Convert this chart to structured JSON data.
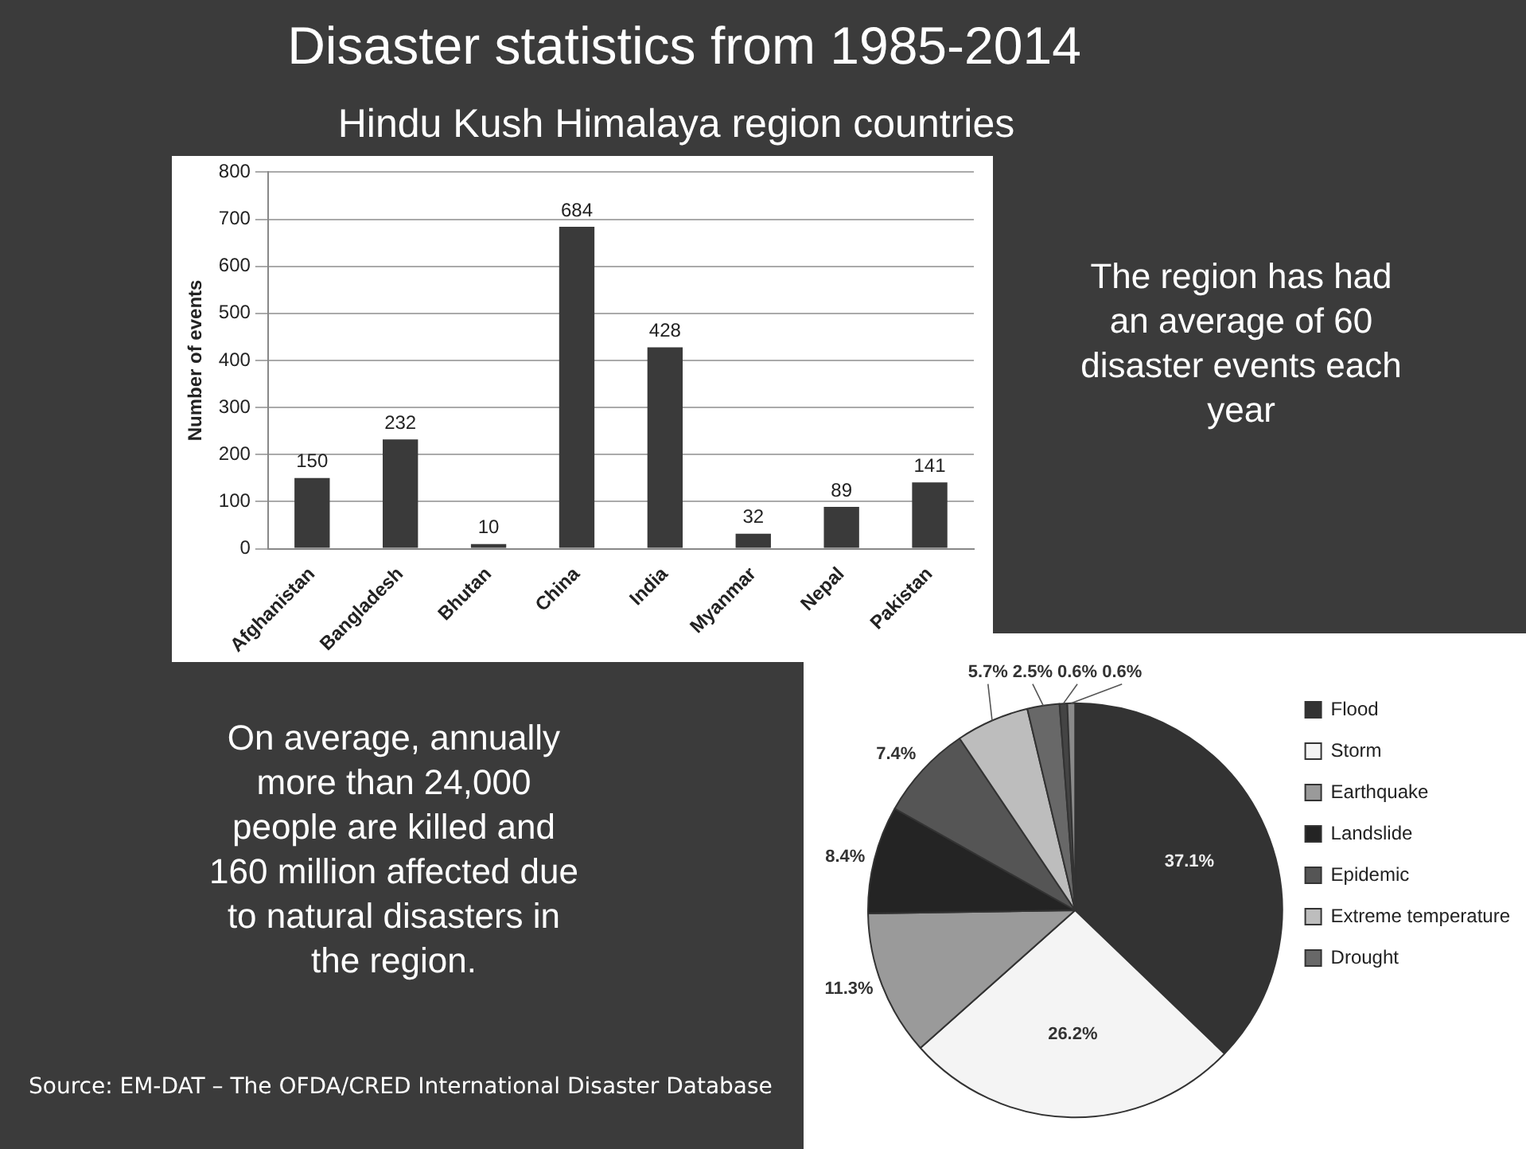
{
  "chart_data": [
    {
      "type": "bar",
      "title": "Disaster statistics from 1985-2014",
      "subtitle": "Hindu Kush Himalaya region countries",
      "categories": [
        "Afghanistan",
        "Bangladesh",
        "Bhutan",
        "China",
        "India",
        "Myanmar",
        "Nepal",
        "Pakistan"
      ],
      "values": [
        150,
        232,
        10,
        684,
        428,
        32,
        89,
        141
      ],
      "color": "#3a3a3a",
      "ylabel": "Number of events",
      "ylim": [
        0,
        800
      ],
      "yticks": [
        0,
        100,
        200,
        300,
        400,
        500,
        600,
        700,
        800
      ],
      "grid": "y",
      "data_labels": true,
      "legend": false,
      "annotations": [
        "The region has had an average of 60 disaster events each year",
        "On average, annually more than 24,000 people are killed and 160 million affected due to natural disasters in the region.",
        "Source: EM-DAT – The OFDA/CRED International Disaster Database"
      ]
    },
    {
      "type": "pie",
      "categories": [
        "Flood",
        "Storm",
        "Earthquake",
        "Landslide",
        "Epidemic",
        "Extreme temperature",
        "Drought",
        null,
        null
      ],
      "values": [
        37.1,
        26.2,
        11.3,
        8.4,
        7.4,
        5.7,
        2.5,
        0.6,
        0.6
      ],
      "colors": [
        "#333333",
        "#f4f4f4",
        "#9a9a9a",
        "#242424",
        "#555555",
        "#bdbdbd",
        "#686868",
        "#444444",
        "#8a8a8a"
      ],
      "value_labels": [
        "37.1%",
        "26.2%",
        "11.3%",
        "8.4%",
        "7.4%",
        "5.7%",
        "2.5%",
        "0.6%",
        "0.6%"
      ],
      "legend": "right"
    }
  ]
}
